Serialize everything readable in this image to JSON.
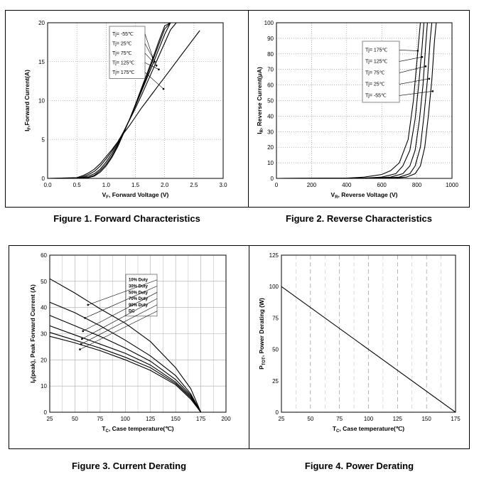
{
  "figures": [
    {
      "caption": "Figure 1. Forward Characteristics"
    },
    {
      "caption": "Figure 2. Reverse Characteristics"
    },
    {
      "caption": "Figure 3. Current Derating"
    },
    {
      "caption": "Figure 4. Power Derating"
    }
  ],
  "chart_data": [
    {
      "type": "line",
      "xlabel": "VF, Forward Voltage (V)",
      "ylabel": "IF,Forward Current(A)",
      "xlim": [
        0,
        3.0
      ],
      "ylim": [
        0,
        20
      ],
      "xticks": [
        "0.0",
        "0.5",
        "1.0",
        "1.5",
        "2.0",
        "2.5",
        "3.0"
      ],
      "yticks": [
        "0",
        "5",
        "10",
        "15",
        "20"
      ],
      "grid": "dotted",
      "legend_position": "top-center",
      "series": [
        {
          "name": "Tj= -55℃",
          "x": [
            0,
            0.5,
            0.6,
            0.7,
            0.8,
            0.9,
            1.0,
            1.1,
            1.2,
            1.3,
            1.4,
            1.5,
            1.6,
            1.7,
            1.8,
            1.9,
            2.0,
            2.1
          ],
          "y": [
            0,
            0,
            0.05,
            0.1,
            0.3,
            0.8,
            1.6,
            2.7,
            4.1,
            5.8,
            7.6,
            9.5,
            11.5,
            13.5,
            15.5,
            17.6,
            19.6,
            20
          ]
        },
        {
          "name": "Tj= 25℃",
          "x": [
            0,
            0.5,
            0.6,
            0.7,
            0.8,
            0.9,
            1.0,
            1.1,
            1.2,
            1.3,
            1.4,
            1.5,
            1.6,
            1.7,
            1.8,
            1.9,
            2.0,
            2.1
          ],
          "y": [
            0,
            0,
            0.05,
            0.15,
            0.4,
            1.0,
            1.8,
            2.9,
            4.3,
            5.9,
            7.6,
            9.4,
            11.3,
            13.2,
            15.2,
            17.2,
            19.2,
            20
          ]
        },
        {
          "name": "Tj= 75℃",
          "x": [
            0,
            0.5,
            0.6,
            0.7,
            0.8,
            0.9,
            1.0,
            1.1,
            1.2,
            1.3,
            1.4,
            1.5,
            1.6,
            1.7,
            1.8,
            1.9,
            2.0,
            2.1
          ],
          "y": [
            0,
            0,
            0.1,
            0.3,
            0.6,
            1.2,
            2.1,
            3.2,
            4.5,
            6.0,
            7.6,
            9.3,
            11.1,
            12.9,
            14.7,
            16.6,
            18.5,
            20
          ]
        },
        {
          "name": "Tj= 125℃",
          "x": [
            0,
            0.5,
            0.6,
            0.7,
            0.8,
            0.9,
            1.0,
            1.1,
            1.2,
            1.3,
            1.4,
            1.5,
            1.6,
            1.7,
            1.8,
            1.9,
            2.0,
            2.1,
            2.2
          ],
          "y": [
            0,
            0.05,
            0.2,
            0.5,
            0.9,
            1.6,
            2.5,
            3.5,
            4.7,
            6.0,
            7.5,
            9.0,
            10.6,
            12.3,
            14.0,
            15.7,
            17.4,
            19.1,
            20
          ]
        },
        {
          "name": "Tj= 175℃",
          "x": [
            0,
            0.5,
            0.6,
            0.7,
            0.8,
            0.9,
            1.0,
            1.1,
            1.2,
            1.3,
            1.4,
            1.5,
            1.6,
            1.7,
            1.8,
            1.9,
            2.0,
            2.2,
            2.4,
            2.6
          ],
          "y": [
            0,
            0.1,
            0.35,
            0.7,
            1.2,
            1.9,
            2.8,
            3.7,
            4.7,
            5.8,
            6.8,
            7.9,
            9.0,
            10.0,
            11.0,
            12.0,
            13.0,
            15.0,
            17.0,
            19.0
          ]
        }
      ]
    },
    {
      "type": "line",
      "xlabel": "VR, Reverse Voltage (V)",
      "ylabel": "IR, Reverse Current(μA)",
      "xlim": [
        0,
        1000
      ],
      "ylim": [
        0,
        100
      ],
      "xticks": [
        "0",
        "200",
        "400",
        "600",
        "800",
        "1000"
      ],
      "yticks": [
        "0",
        "10",
        "20",
        "30",
        "40",
        "50",
        "60",
        "70",
        "80",
        "90",
        "100"
      ],
      "grid": "dotted",
      "legend_position": "top-center",
      "series": [
        {
          "name": "Tj= 175℃",
          "x": [
            0,
            400,
            500,
            600,
            650,
            700,
            750,
            780,
            800,
            820
          ],
          "y": [
            0,
            0.2,
            0.8,
            2.5,
            5,
            10,
            25,
            50,
            75,
            100
          ]
        },
        {
          "name": "Tj= 125℃",
          "x": [
            0,
            500,
            600,
            680,
            720,
            760,
            790,
            810,
            830,
            840
          ],
          "y": [
            0,
            0.2,
            0.8,
            3,
            8,
            18,
            38,
            60,
            85,
            100
          ]
        },
        {
          "name": "Tj= 75℃",
          "x": [
            0,
            550,
            650,
            720,
            760,
            790,
            815,
            835,
            850,
            860
          ],
          "y": [
            0,
            0.1,
            0.8,
            3,
            8,
            18,
            38,
            60,
            85,
            100
          ]
        },
        {
          "name": "Tj= 25℃",
          "x": [
            0,
            600,
            700,
            760,
            790,
            820,
            840,
            860,
            875,
            885
          ],
          "y": [
            0,
            0.1,
            0.8,
            3,
            8,
            20,
            40,
            63,
            88,
            100
          ]
        },
        {
          "name": "Tj= -55℃",
          "x": [
            0,
            650,
            740,
            790,
            820,
            845,
            865,
            885,
            900,
            910
          ],
          "y": [
            0,
            0.1,
            0.8,
            3,
            8,
            20,
            40,
            63,
            88,
            100
          ]
        }
      ]
    },
    {
      "type": "line",
      "xlabel": "TC, Case temperature(℃)",
      "ylabel": "IF(peak), Peak Forward Current (A)",
      "xlim": [
        25,
        200
      ],
      "ylim": [
        0,
        60
      ],
      "xticks": [
        "25",
        "50",
        "75",
        "100",
        "125",
        "150",
        "175",
        "200"
      ],
      "yticks": [
        "0",
        "10",
        "20",
        "30",
        "40",
        "50",
        "60"
      ],
      "grid": "solid",
      "legend_position": "top-center",
      "series": [
        {
          "name": "10% Duty",
          "x": [
            25,
            50,
            75,
            100,
            125,
            150,
            165,
            175
          ],
          "y": [
            51,
            45.5,
            39.5,
            34,
            27,
            17,
            9,
            0
          ]
        },
        {
          "name": "30% Duty",
          "x": [
            25,
            50,
            75,
            100,
            125,
            150,
            165,
            175
          ],
          "y": [
            42,
            38,
            33,
            27.5,
            21.5,
            14,
            7,
            0
          ]
        },
        {
          "name": "50% Duty",
          "x": [
            25,
            50,
            75,
            100,
            125,
            150,
            165,
            175
          ],
          "y": [
            37,
            33,
            29,
            24.5,
            19.5,
            12.5,
            6.5,
            0
          ]
        },
        {
          "name": "70% Duty",
          "x": [
            25,
            50,
            75,
            100,
            125,
            150,
            165,
            175
          ],
          "y": [
            33,
            29.5,
            26,
            22.5,
            18,
            11.5,
            6,
            0
          ]
        },
        {
          "name": "90% Duty",
          "x": [
            25,
            50,
            75,
            100,
            125,
            150,
            165,
            175
          ],
          "y": [
            30.5,
            27.5,
            24.5,
            21,
            17,
            11,
            5.5,
            0
          ]
        },
        {
          "name": "DC",
          "x": [
            25,
            50,
            75,
            100,
            125,
            150,
            165,
            175
          ],
          "y": [
            29,
            26.5,
            23.5,
            20,
            16,
            10.5,
            5,
            0
          ]
        }
      ]
    },
    {
      "type": "line",
      "xlabel": "TC, Case temperature(℃)",
      "ylabel": "PTOT, Power Derating (W)",
      "xlim": [
        25,
        175
      ],
      "ylim": [
        0,
        125
      ],
      "xticks": [
        "25",
        "50",
        "75",
        "100",
        "125",
        "150",
        "175"
      ],
      "yticks": [
        "0",
        "25",
        "50",
        "75",
        "100",
        "125"
      ],
      "grid": "dashed",
      "series": [
        {
          "x": [
            25,
            175
          ],
          "y": [
            100,
            0
          ]
        }
      ]
    }
  ]
}
